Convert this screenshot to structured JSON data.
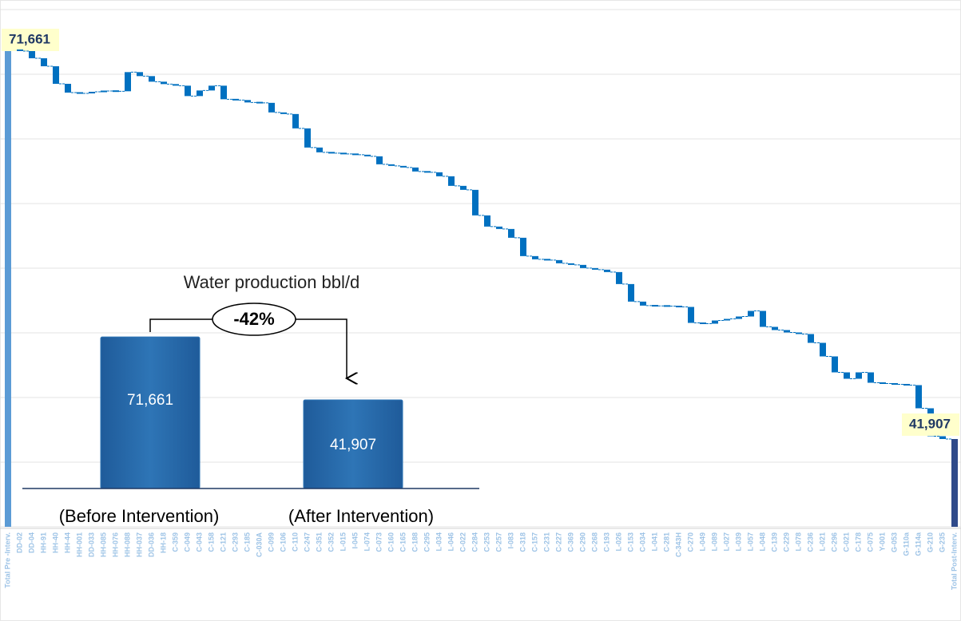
{
  "chart_data": [
    {
      "type": "waterfall",
      "categories": [
        "Total Pre -Interv.",
        "DD-02",
        "DD-04",
        "HH-91",
        "HH-40",
        "HH-44",
        "HH-001",
        "DD-033",
        "HH-085",
        "HH-076",
        "HH-088",
        "HH-037",
        "DD-036",
        "HH-18",
        "C-359",
        "C-049",
        "C-043",
        "C-158",
        "C-121",
        "C-293",
        "C-185",
        "C-030A",
        "C-099",
        "C-106",
        "C-110",
        "C-247",
        "C-351",
        "C-352",
        "L-015",
        "I-045",
        "L-074",
        "C-073",
        "C-160",
        "C-165",
        "C-188",
        "C-295",
        "L-034",
        "L-046",
        "C-022",
        "C-284",
        "C-253",
        "C-257",
        "I-083",
        "C-318",
        "C-157",
        "C-231",
        "C-227",
        "C-369",
        "C-290",
        "C-268",
        "C-193",
        "L-026",
        "C-153",
        "C-034",
        "L-041",
        "C-281",
        "C-343H",
        "C-270",
        "L-049",
        "L-089",
        "L-027",
        "L-039",
        "L-057",
        "L-048",
        "C-139",
        "C-229",
        "L-078",
        "C-236",
        "L-021",
        "C-296",
        "C-021",
        "C-178",
        "C-075",
        "Y-001",
        "G-053",
        "G-110a",
        "G-114a",
        "G-210",
        "G-235",
        "Total Post-Interv."
      ],
      "values": [
        71661,
        -122,
        -549,
        -610,
        -1341,
        -671,
        -61,
        122,
        61,
        -20,
        1463,
        -305,
        -427,
        -183,
        -122,
        -793,
        427,
        366,
        -1036,
        -61,
        -183,
        -30,
        -732,
        -122,
        -1097,
        -1463,
        -366,
        -61,
        -61,
        -61,
        -122,
        -610,
        -122,
        -122,
        -305,
        -61,
        -305,
        -732,
        -305,
        -1951,
        -854,
        -183,
        -671,
        -1402,
        -244,
        -61,
        -244,
        -122,
        -244,
        -122,
        -183,
        -915,
        -1341,
        -305,
        -20,
        -20,
        -61,
        -1219,
        -61,
        244,
        122,
        183,
        427,
        -1219,
        -244,
        -183,
        -122,
        -671,
        -1036,
        -1219,
        -488,
        488,
        -793,
        -61,
        -61,
        -61,
        -1768,
        -2134,
        -213,
        41907
      ],
      "measures": [
        "absolute",
        "relative",
        "relative",
        "relative",
        "relative",
        "relative",
        "relative",
        "relative",
        "relative",
        "relative",
        "relative",
        "relative",
        "relative",
        "relative",
        "relative",
        "relative",
        "relative",
        "relative",
        "relative",
        "relative",
        "relative",
        "relative",
        "relative",
        "relative",
        "relative",
        "relative",
        "relative",
        "relative",
        "relative",
        "relative",
        "relative",
        "relative",
        "relative",
        "relative",
        "relative",
        "relative",
        "relative",
        "relative",
        "relative",
        "relative",
        "relative",
        "relative",
        "relative",
        "relative",
        "relative",
        "relative",
        "relative",
        "relative",
        "relative",
        "relative",
        "relative",
        "relative",
        "relative",
        "relative",
        "relative",
        "relative",
        "relative",
        "relative",
        "relative",
        "relative",
        "relative",
        "relative",
        "relative",
        "relative",
        "relative",
        "relative",
        "relative",
        "relative",
        "relative",
        "relative",
        "relative",
        "relative",
        "relative",
        "relative",
        "relative",
        "relative",
        "relative",
        "relative",
        "relative",
        "total"
      ],
      "value_labels": [
        "71,661",
        null,
        null,
        null,
        null,
        null,
        null,
        null,
        null,
        null,
        null,
        null,
        null,
        null,
        null,
        null,
        null,
        null,
        null,
        null,
        null,
        null,
        null,
        null,
        null,
        null,
        null,
        null,
        null,
        null,
        null,
        null,
        null,
        null,
        null,
        null,
        null,
        null,
        null,
        null,
        null,
        null,
        null,
        null,
        null,
        null,
        null,
        null,
        null,
        null,
        null,
        null,
        null,
        null,
        null,
        null,
        null,
        null,
        null,
        null,
        null,
        null,
        null,
        null,
        null,
        null,
        null,
        null,
        null,
        null,
        null,
        null,
        null,
        null,
        null,
        null,
        null,
        null,
        null,
        "41,907"
      ],
      "colors": {
        "start": "#5b9bd5",
        "delta": "#0070c0",
        "end": "#2f4a8a"
      },
      "ylim": [
        35200,
        74710
      ],
      "yticks": [
        35200,
        40139,
        45077,
        50016,
        54955,
        59894,
        64832,
        69771,
        74710
      ],
      "grid": true
    },
    {
      "type": "bar",
      "title": "Water production  bbl/d",
      "categories": [
        "(Before Intervention)",
        "(After Intervention)"
      ],
      "values": [
        71661,
        41907
      ],
      "value_labels": [
        "71,661",
        "41,907"
      ],
      "annotation": "-42%",
      "color": "#2e75b6",
      "ylim": [
        0,
        80000
      ]
    }
  ]
}
